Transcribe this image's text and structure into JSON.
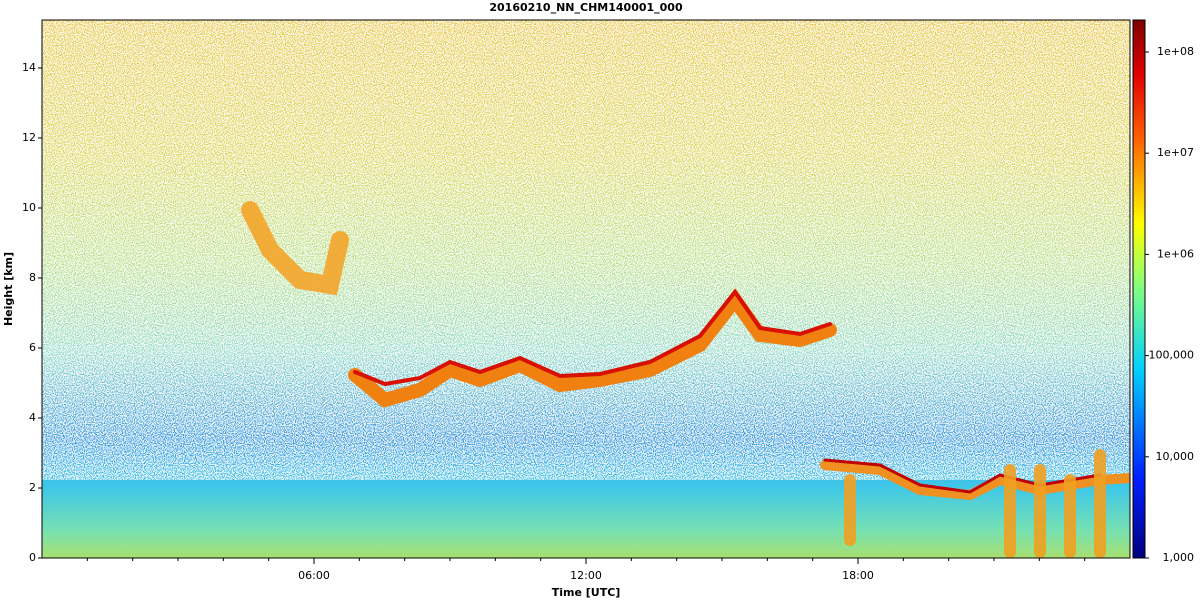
{
  "chart_data": {
    "type": "heatmap",
    "title": "20160210_NN_CHM140001_000",
    "xlabel": "Time [UTC]",
    "ylabel": "Height [km]",
    "xlim": [
      0,
      24
    ],
    "xticks": [
      {
        "value": 6,
        "label": "06:00"
      },
      {
        "value": 12,
        "label": "12:00"
      },
      {
        "value": 18,
        "label": "18:00"
      }
    ],
    "xminorticks": [
      1,
      2,
      3,
      4,
      5,
      7,
      8,
      9,
      10,
      11,
      13,
      14,
      15,
      16,
      17,
      19,
      20,
      21,
      22,
      23
    ],
    "ylim": [
      0,
      15.37
    ],
    "yticks": [
      0,
      2,
      4,
      6,
      8,
      10,
      12,
      14
    ],
    "colorbar": {
      "scale": "log",
      "lim": [
        1000,
        207000000
      ],
      "ticks": [
        {
          "value": 1000,
          "label": "1,000"
        },
        {
          "value": 10000,
          "label": "10,000"
        },
        {
          "value": 100000,
          "label": "100,000"
        },
        {
          "value": 1000000,
          "label": "1e+06"
        },
        {
          "value": 10000000,
          "label": "1e+07"
        },
        {
          "value": 100000000,
          "label": "1e+08"
        }
      ]
    }
  }
}
